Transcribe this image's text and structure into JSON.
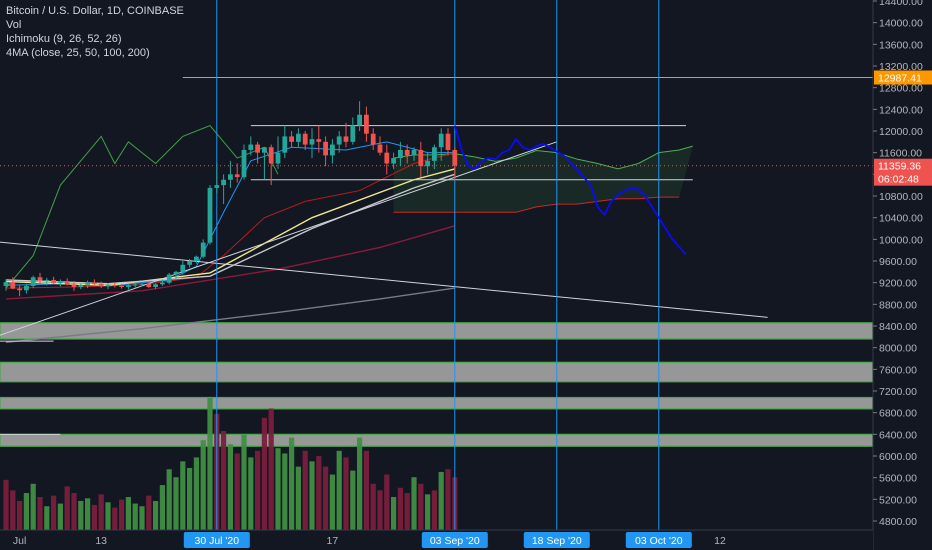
{
  "legend": {
    "symbol": "Bitcoin / U.S. Dollar, 1D, COINBASE",
    "volume": "Vol",
    "ichimoku": "Ichimoku (9, 26, 52, 26)",
    "ma": "4MA (close, 25, 50, 100, 200)"
  },
  "colors": {
    "background": "#131722",
    "axis_text": "#b2b5be",
    "up": "#26a69a",
    "down": "#ef5350",
    "vertical_line": "#2196f3",
    "forecast": "#0a0aff",
    "target_line": "#ff9800",
    "price_label": "#ef5350",
    "zone_fill": "#9e9e9e",
    "zone_border": "#4caf50"
  },
  "chart_data": {
    "type": "candlestick",
    "y_axis": {
      "ticks": [
        14400,
        14000,
        13600,
        13200,
        12800,
        12400,
        12000,
        11600,
        11200,
        10800,
        10400,
        10000,
        9600,
        9200,
        8800,
        8400,
        8000,
        7600,
        7200,
        6800,
        6400,
        6000,
        5600,
        5200,
        4800
      ],
      "tick_labels": [
        "14400.00",
        "14000.00",
        "13600.00",
        "13200.00",
        "12800.00",
        "12400.00",
        "12000.00",
        "11600.00",
        "11200.00",
        "10800.00",
        "10400.00",
        "10000.00",
        "9600.00",
        "9200.00",
        "8800.00",
        "8400.00",
        "8000.00",
        "7600.00",
        "7200.00",
        "6800.00",
        "6400.00",
        "6000.00",
        "5600.00",
        "5200.00",
        "4800.00"
      ],
      "range": [
        4620,
        14600
      ]
    },
    "x_axis": {
      "ticks": [
        {
          "day": 2,
          "label": "Jul",
          "highlight": false
        },
        {
          "day": 14,
          "label": "13",
          "highlight": false
        },
        {
          "day": 31,
          "label": "30 Jul '20",
          "highlight": true
        },
        {
          "day": 48,
          "label": "17",
          "highlight": false
        },
        {
          "day": 66,
          "label": "03 Sep '20",
          "highlight": true
        },
        {
          "day": 81,
          "label": "18 Sep '20",
          "highlight": true
        },
        {
          "day": 96,
          "label": "03 Oct '20",
          "highlight": true
        },
        {
          "day": 105,
          "label": "12",
          "highlight": false
        }
      ]
    },
    "price_labels": [
      {
        "value": 12987.41,
        "text": "12987.41",
        "color": "#ff9800"
      },
      {
        "value": 11359.36,
        "text": "11359.36",
        "color": "#ef5350"
      },
      {
        "value": 11120,
        "text": "06:02:48",
        "color": "#ef5350"
      }
    ],
    "candles": [
      [
        9140,
        9260,
        9050,
        9210
      ],
      [
        9210,
        9300,
        9080,
        9090
      ],
      [
        9090,
        9160,
        8950,
        9060
      ],
      [
        9060,
        9180,
        9000,
        9140
      ],
      [
        9140,
        9330,
        9100,
        9300
      ],
      [
        9300,
        9380,
        9180,
        9240
      ],
      [
        9240,
        9290,
        9150,
        9250
      ],
      [
        9250,
        9310,
        9170,
        9190
      ],
      [
        9190,
        9260,
        9130,
        9230
      ],
      [
        9230,
        9280,
        9150,
        9170
      ],
      [
        9170,
        9230,
        9050,
        9120
      ],
      [
        9120,
        9190,
        9080,
        9160
      ],
      [
        9160,
        9240,
        9100,
        9200
      ],
      [
        9200,
        9260,
        9130,
        9180
      ],
      [
        9180,
        9220,
        9100,
        9130
      ],
      [
        9130,
        9190,
        9080,
        9160
      ],
      [
        9160,
        9200,
        9110,
        9140
      ],
      [
        9140,
        9180,
        9090,
        9120
      ],
      [
        9120,
        9170,
        9070,
        9150
      ],
      [
        9150,
        9190,
        9100,
        9170
      ],
      [
        9170,
        9200,
        9130,
        9180
      ],
      [
        9180,
        9210,
        9100,
        9120
      ],
      [
        9120,
        9190,
        9080,
        9170
      ],
      [
        9170,
        9260,
        9140,
        9200
      ],
      [
        9200,
        9380,
        9170,
        9350
      ],
      [
        9350,
        9420,
        9270,
        9400
      ],
      [
        9400,
        9600,
        9350,
        9530
      ],
      [
        9530,
        9640,
        9480,
        9600
      ],
      [
        9600,
        9700,
        9550,
        9680
      ],
      [
        9680,
        10000,
        9650,
        9940
      ],
      [
        9940,
        11000,
        9900,
        10950
      ],
      [
        10950,
        11400,
        10850,
        11000
      ],
      [
        11000,
        11200,
        10650,
        11100
      ],
      [
        11100,
        11450,
        10950,
        11200
      ],
      [
        11200,
        11400,
        11050,
        11150
      ],
      [
        11150,
        11750,
        11100,
        11650
      ],
      [
        11650,
        11900,
        11550,
        11750
      ],
      [
        11750,
        11800,
        11400,
        11600
      ],
      [
        11600,
        11700,
        11100,
        11700
      ],
      [
        11700,
        11750,
        11000,
        11400
      ],
      [
        11400,
        11900,
        11300,
        11600
      ],
      [
        11600,
        12100,
        11500,
        11900
      ],
      [
        11900,
        12000,
        11700,
        11800
      ],
      [
        11800,
        12050,
        11700,
        11950
      ],
      [
        11950,
        12000,
        11650,
        11750
      ],
      [
        11750,
        12050,
        11500,
        11850
      ],
      [
        11850,
        12100,
        11600,
        11800
      ],
      [
        11800,
        11900,
        11350,
        11550
      ],
      [
        11550,
        11850,
        11400,
        11750
      ],
      [
        11750,
        12000,
        11600,
        11900
      ],
      [
        11900,
        12150,
        11700,
        11800
      ],
      [
        11800,
        12250,
        11750,
        12100
      ],
      [
        12100,
        12550,
        12000,
        12300
      ],
      [
        12300,
        12450,
        11800,
        11950
      ],
      [
        11950,
        12050,
        11650,
        11750
      ],
      [
        11750,
        11900,
        11550,
        11600
      ],
      [
        11600,
        11750,
        11200,
        11400
      ],
      [
        11400,
        11600,
        11300,
        11500
      ],
      [
        11500,
        11800,
        11350,
        11650
      ],
      [
        11650,
        11750,
        11400,
        11550
      ],
      [
        11550,
        11700,
        11450,
        11650
      ],
      [
        11650,
        11800,
        11150,
        11350
      ],
      [
        11350,
        11600,
        11200,
        11450
      ],
      [
        11450,
        11750,
        11300,
        11700
      ],
      [
        11700,
        12050,
        11450,
        11950
      ],
      [
        11950,
        12050,
        11550,
        11650
      ],
      [
        11650,
        11700,
        11100,
        11359.36
      ]
    ],
    "volume": [
      {
        "v": 0.38,
        "c": "down"
      },
      {
        "v": 0.3,
        "c": "down"
      },
      {
        "v": 0.22,
        "c": "down"
      },
      {
        "v": 0.28,
        "c": "up"
      },
      {
        "v": 0.35,
        "c": "up"
      },
      {
        "v": 0.25,
        "c": "down"
      },
      {
        "v": 0.18,
        "c": "up"
      },
      {
        "v": 0.26,
        "c": "down"
      },
      {
        "v": 0.2,
        "c": "up"
      },
      {
        "v": 0.33,
        "c": "down"
      },
      {
        "v": 0.28,
        "c": "down"
      },
      {
        "v": 0.22,
        "c": "up"
      },
      {
        "v": 0.24,
        "c": "up"
      },
      {
        "v": 0.19,
        "c": "down"
      },
      {
        "v": 0.27,
        "c": "down"
      },
      {
        "v": 0.21,
        "c": "up"
      },
      {
        "v": 0.17,
        "c": "down"
      },
      {
        "v": 0.23,
        "c": "down"
      },
      {
        "v": 0.25,
        "c": "up"
      },
      {
        "v": 0.2,
        "c": "up"
      },
      {
        "v": 0.18,
        "c": "up"
      },
      {
        "v": 0.26,
        "c": "down"
      },
      {
        "v": 0.22,
        "c": "up"
      },
      {
        "v": 0.34,
        "c": "up"
      },
      {
        "v": 0.46,
        "c": "up"
      },
      {
        "v": 0.4,
        "c": "up"
      },
      {
        "v": 0.52,
        "c": "up"
      },
      {
        "v": 0.47,
        "c": "up"
      },
      {
        "v": 0.55,
        "c": "up"
      },
      {
        "v": 0.68,
        "c": "up"
      },
      {
        "v": 1.0,
        "c": "up"
      },
      {
        "v": 0.88,
        "c": "down"
      },
      {
        "v": 0.75,
        "c": "down"
      },
      {
        "v": 0.65,
        "c": "up"
      },
      {
        "v": 0.58,
        "c": "down"
      },
      {
        "v": 0.72,
        "c": "up"
      },
      {
        "v": 0.55,
        "c": "up"
      },
      {
        "v": 0.6,
        "c": "down"
      },
      {
        "v": 0.85,
        "c": "down"
      },
      {
        "v": 0.92,
        "c": "down"
      },
      {
        "v": 0.62,
        "c": "up"
      },
      {
        "v": 0.58,
        "c": "up"
      },
      {
        "v": 0.7,
        "c": "up"
      },
      {
        "v": 0.48,
        "c": "up"
      },
      {
        "v": 0.6,
        "c": "down"
      },
      {
        "v": 0.52,
        "c": "up"
      },
      {
        "v": 0.56,
        "c": "down"
      },
      {
        "v": 0.48,
        "c": "down"
      },
      {
        "v": 0.42,
        "c": "up"
      },
      {
        "v": 0.6,
        "c": "up"
      },
      {
        "v": 0.55,
        "c": "down"
      },
      {
        "v": 0.45,
        "c": "up"
      },
      {
        "v": 0.7,
        "c": "up"
      },
      {
        "v": 0.6,
        "c": "down"
      },
      {
        "v": 0.35,
        "c": "down"
      },
      {
        "v": 0.3,
        "c": "down"
      },
      {
        "v": 0.42,
        "c": "down"
      },
      {
        "v": 0.25,
        "c": "up"
      },
      {
        "v": 0.32,
        "c": "down"
      },
      {
        "v": 0.28,
        "c": "down"
      },
      {
        "v": 0.4,
        "c": "up"
      },
      {
        "v": 0.35,
        "c": "down"
      },
      {
        "v": 0.27,
        "c": "up"
      },
      {
        "v": 0.3,
        "c": "down"
      },
      {
        "v": 0.44,
        "c": "up"
      },
      {
        "v": 0.46,
        "c": "down"
      },
      {
        "v": 0.4,
        "c": "down"
      }
    ],
    "ichimoku": {
      "span_a": [
        [
          57,
          11500
        ],
        [
          60,
          11560
        ],
        [
          63,
          11560
        ],
        [
          66,
          11580
        ],
        [
          69,
          11520
        ],
        [
          72,
          11440
        ],
        [
          75,
          11500
        ],
        [
          78,
          11640
        ],
        [
          81,
          11600
        ],
        [
          84,
          11480
        ],
        [
          87,
          11400
        ],
        [
          90,
          11300
        ],
        [
          93,
          11400
        ],
        [
          96,
          11600
        ],
        [
          99,
          11650
        ],
        [
          101,
          11720
        ]
      ],
      "span_b": [
        [
          57,
          10500
        ],
        [
          60,
          10500
        ],
        [
          63,
          10500
        ],
        [
          66,
          10500
        ],
        [
          69,
          10500
        ],
        [
          72,
          10500
        ],
        [
          75,
          10500
        ],
        [
          78,
          10600
        ],
        [
          81,
          10650
        ],
        [
          84,
          10650
        ],
        [
          87,
          10700
        ],
        [
          90,
          10750
        ],
        [
          93,
          10750
        ],
        [
          96,
          10780
        ],
        [
          99,
          10780
        ]
      ],
      "conversion": [
        [
          0,
          9150
        ],
        [
          8,
          9180
        ],
        [
          16,
          9150
        ],
        [
          24,
          9250
        ],
        [
          28,
          9500
        ],
        [
          32,
          10500
        ],
        [
          36,
          11450
        ],
        [
          42,
          11700
        ],
        [
          50,
          11650
        ],
        [
          56,
          11800
        ],
        [
          62,
          11600
        ],
        [
          66,
          11600
        ]
      ],
      "base": [
        [
          0,
          9100
        ],
        [
          10,
          9120
        ],
        [
          20,
          9160
        ],
        [
          28,
          9300
        ],
        [
          32,
          9700
        ],
        [
          38,
          10400
        ],
        [
          44,
          10700
        ],
        [
          52,
          10900
        ],
        [
          60,
          11400
        ],
        [
          66,
          11600
        ]
      ],
      "lagging": [
        [
          0,
          9100
        ],
        [
          4,
          9700
        ],
        [
          8,
          11000
        ],
        [
          12,
          11600
        ],
        [
          14,
          11900
        ],
        [
          16,
          11400
        ],
        [
          18,
          11800
        ],
        [
          22,
          11400
        ],
        [
          26,
          11900
        ],
        [
          30,
          12100
        ],
        [
          34,
          11500
        ],
        [
          38,
          11700
        ],
        [
          40,
          11200
        ]
      ]
    },
    "moving_averages": [
      {
        "period": 25,
        "color": "#f0e68c",
        "points": [
          [
            0,
            9220
          ],
          [
            15,
            9150
          ],
          [
            30,
            9380
          ],
          [
            45,
            10400
          ],
          [
            60,
            11100
          ],
          [
            66,
            11300
          ]
        ]
      },
      {
        "period": 50,
        "color": "#c8c8c8",
        "points": [
          [
            0,
            9250
          ],
          [
            15,
            9180
          ],
          [
            30,
            9320
          ],
          [
            45,
            10200
          ],
          [
            60,
            10950
          ],
          [
            66,
            11200
          ]
        ]
      },
      {
        "period": 100,
        "color": "#8b1a3a",
        "points": [
          [
            0,
            8900
          ],
          [
            20,
            9050
          ],
          [
            40,
            9450
          ],
          [
            55,
            9850
          ],
          [
            66,
            10250
          ]
        ]
      },
      {
        "period": 200,
        "color": "#787b86",
        "points": [
          [
            0,
            8100
          ],
          [
            20,
            8350
          ],
          [
            40,
            8650
          ],
          [
            55,
            8900
          ],
          [
            66,
            9100
          ]
        ]
      }
    ],
    "forecast_path": [
      [
        66,
        12100
      ],
      [
        67,
        11650
      ],
      [
        68,
        11350
      ],
      [
        69,
        11300
      ],
      [
        70,
        11450
      ],
      [
        71,
        11500
      ],
      [
        72,
        11480
      ],
      [
        73,
        11600
      ],
      [
        74,
        11650
      ],
      [
        75,
        11850
      ],
      [
        76,
        11700
      ],
      [
        77,
        11650
      ],
      [
        78,
        11720
      ],
      [
        79,
        11760
      ],
      [
        80,
        11700
      ],
      [
        81,
        11620
      ],
      [
        82,
        11550
      ],
      [
        84,
        11280
      ],
      [
        86,
        11000
      ],
      [
        87,
        10600
      ],
      [
        88,
        10450
      ],
      [
        89,
        10700
      ],
      [
        90,
        10820
      ],
      [
        91,
        10900
      ],
      [
        92,
        10950
      ],
      [
        93,
        10920
      ],
      [
        94,
        10800
      ],
      [
        95,
        10600
      ],
      [
        96,
        10400
      ],
      [
        97,
        10200
      ],
      [
        98,
        10000
      ],
      [
        99,
        9860
      ],
      [
        100,
        9720
      ]
    ],
    "horizontal_lines": [
      {
        "value": 12987.41,
        "from": 26,
        "to": 130,
        "color": "#ff9800"
      },
      {
        "value": 12100,
        "from": 36,
        "to": 100,
        "color": "#d1d4dc"
      },
      {
        "value": 11100,
        "from": 36,
        "to": 101,
        "color": "#d1d4dc"
      },
      {
        "value": 8120,
        "from": -5,
        "to": 7,
        "color": "#d1d4dc"
      },
      {
        "value": 6400,
        "from": -5,
        "to": 8,
        "color": "#d1d4dc"
      }
    ],
    "trend_lines": [
      {
        "from": [
          -5,
          10000
        ],
        "to": [
          112,
          8560
        ],
        "color": "#d1d4dc"
      },
      {
        "from": [
          -5,
          8050
        ],
        "to": [
          81,
          11800
        ],
        "color": "#d1d4dc"
      }
    ],
    "zones": [
      {
        "from": 8160,
        "to": 8460
      },
      {
        "from": 7370,
        "to": 7730
      },
      {
        "from": 6870,
        "to": 7080
      },
      {
        "from": 6180,
        "to": 6400
      }
    ],
    "vertical_lines": [
      31,
      66,
      81,
      96
    ]
  }
}
